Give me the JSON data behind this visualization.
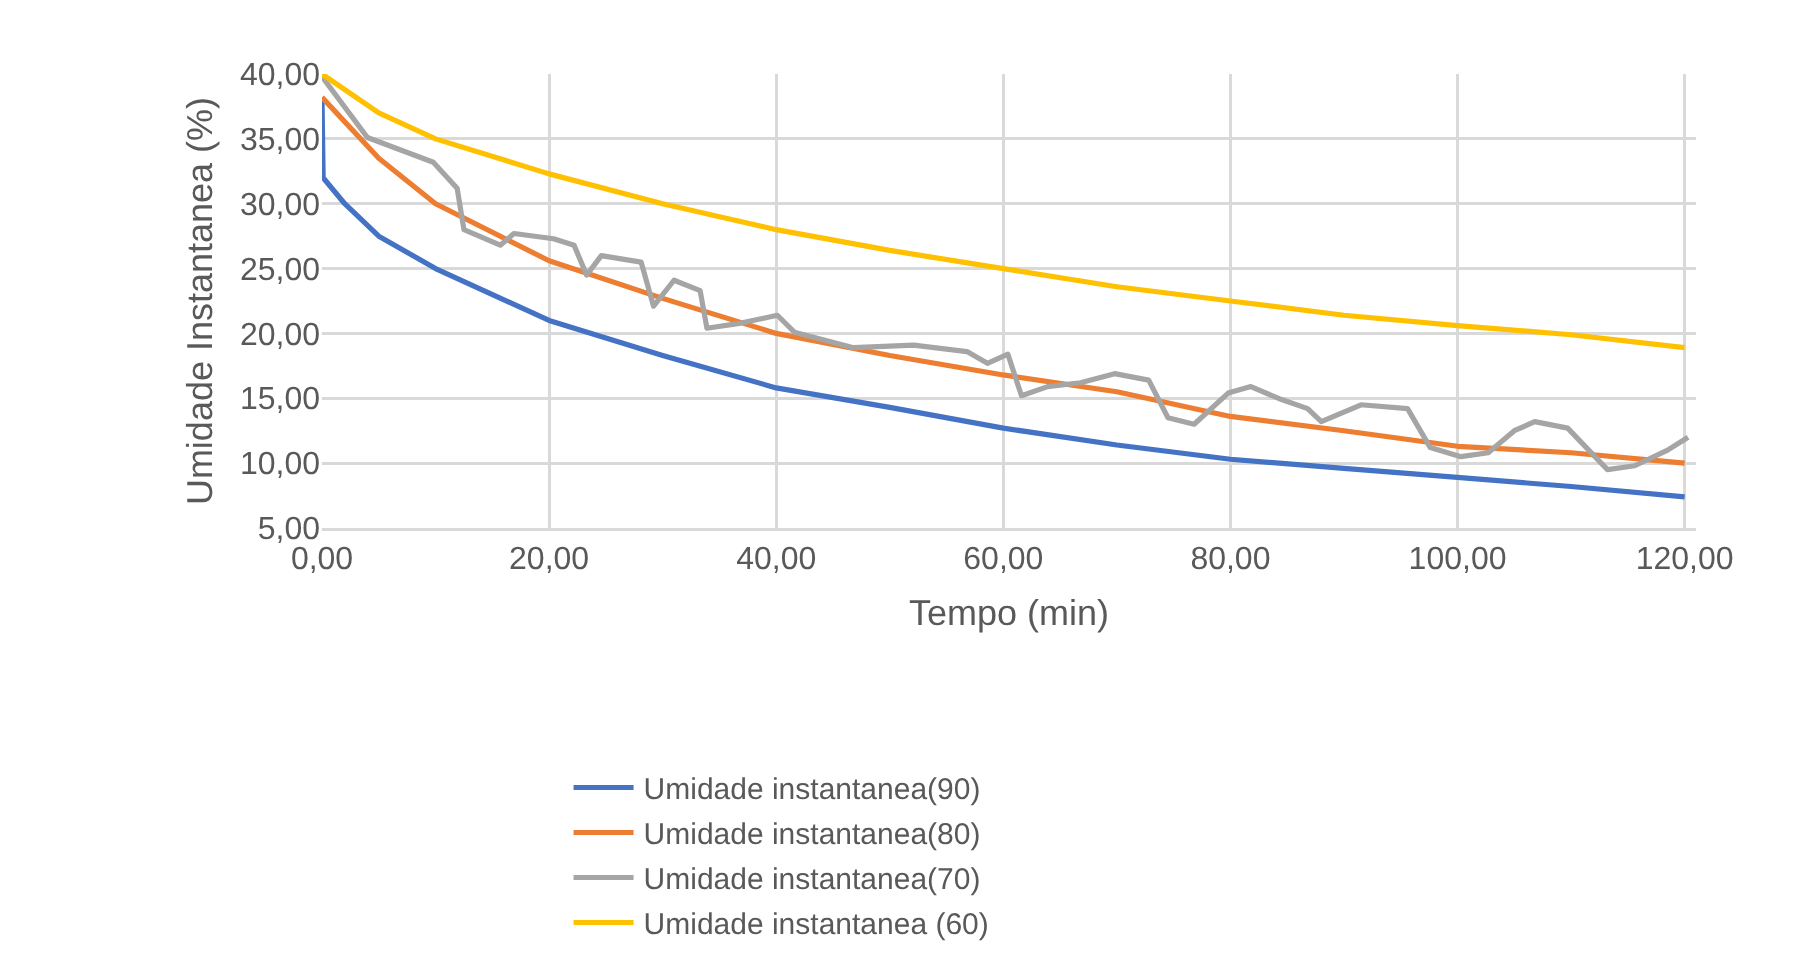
{
  "chart_data": {
    "type": "line",
    "xlabel": "Tempo (min)",
    "ylabel": "Umidade Instantanea (%)",
    "xlim": [
      0,
      121
    ],
    "xticks": [
      {
        "value": 0,
        "label": "0,00"
      },
      {
        "value": 20,
        "label": "20,00"
      },
      {
        "value": 40,
        "label": "40,00"
      },
      {
        "value": 60,
        "label": "60,00"
      },
      {
        "value": 80,
        "label": "80,00"
      },
      {
        "value": 100,
        "label": "100,00"
      },
      {
        "value": 120,
        "label": "120,00"
      }
    ],
    "ylim": [
      5,
      40
    ],
    "yticks": [
      {
        "value": 5,
        "label": "5,00"
      },
      {
        "value": 10,
        "label": "10,00"
      },
      {
        "value": 15,
        "label": "15,00"
      },
      {
        "value": 20,
        "label": "20,00"
      },
      {
        "value": 25,
        "label": "25,00"
      },
      {
        "value": 30,
        "label": "30,00"
      },
      {
        "value": 35,
        "label": "35,00"
      },
      {
        "value": 40,
        "label": "40,00"
      }
    ],
    "grid": true,
    "legend": "bottom",
    "marker": "none",
    "line_style": "solid",
    "series": [
      {
        "name": "Umidade instantanea(90)",
        "color": "#4472c4",
        "x": [
          0,
          0.1,
          2,
          5,
          10,
          20,
          30,
          40,
          50,
          60,
          70,
          80,
          90,
          100,
          110,
          120
        ],
        "values": [
          38,
          32,
          30,
          27.5,
          25,
          21,
          18.3,
          15.8,
          14.3,
          12.7,
          11.4,
          10.3,
          9.6,
          8.9,
          8.2,
          7.4
        ]
      },
      {
        "name": "Umidade instantanea(80)",
        "color": "#ed7d31",
        "x": [
          0,
          5,
          10,
          20,
          30,
          40,
          50,
          60,
          70,
          80,
          90,
          100,
          110,
          120
        ],
        "values": [
          38.2,
          33.5,
          30,
          25.6,
          22.7,
          20,
          18.3,
          16.8,
          15.5,
          13.6,
          12.5,
          11.3,
          10.8,
          10
        ]
      },
      {
        "name": "Umidade instantanea(70)",
        "color": "#a5a5a5",
        "x": [
          0,
          4,
          9.8,
          11.9,
          12.5,
          15.7,
          16.9,
          20.4,
          22.2,
          23.3,
          24.6,
          28.1,
          29.2,
          31,
          33.3,
          33.9,
          36.9,
          40.1,
          41.6,
          46.8,
          52.1,
          56.8,
          58.6,
          60.4,
          61.6,
          63.9,
          66.8,
          69.8,
          72.8,
          74.5,
          76.8,
          79.8,
          81.8,
          84.5,
          86.8,
          88,
          91.5,
          95.6,
          97.6,
          100.3,
          102.7,
          105,
          106.8,
          109.7,
          112.1,
          113.2,
          115.6,
          118.5,
          120.3
        ],
        "values": [
          39.8,
          35.1,
          33.2,
          31.2,
          28,
          26.8,
          27.7,
          27.3,
          26.8,
          24.5,
          26,
          25.5,
          22.1,
          24.1,
          23.3,
          20.4,
          20.8,
          21.4,
          20.1,
          18.9,
          19.1,
          18.6,
          17.7,
          18.4,
          15.2,
          15.9,
          16.2,
          16.9,
          16.4,
          13.5,
          13,
          15.4,
          15.9,
          14.9,
          14.2,
          13.2,
          14.5,
          14.2,
          11.2,
          10.5,
          10.8,
          12.5,
          13.2,
          12.7,
          10.5,
          9.5,
          9.8,
          11,
          12
        ]
      },
      {
        "name": "Umidade instantanea (60)",
        "color": "#ffc000",
        "x": [
          0,
          5,
          10,
          20,
          30,
          40,
          50,
          60,
          70,
          80,
          90,
          100,
          110,
          120
        ],
        "values": [
          40,
          37,
          35,
          32.3,
          30,
          28,
          26.4,
          25,
          23.6,
          22.5,
          21.4,
          20.6,
          19.9,
          18.9
        ]
      }
    ]
  }
}
